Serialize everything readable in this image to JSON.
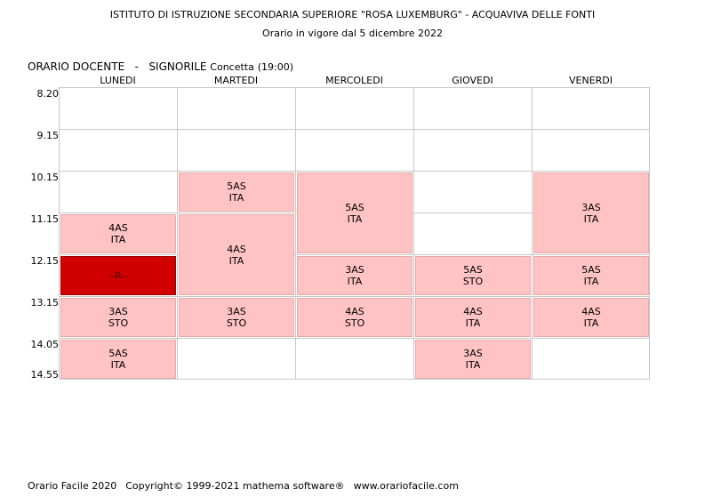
{
  "header": {
    "institute": "ISTITUTO DI ISTRUZIONE SECONDARIA SUPERIORE \"ROSA LUXEMBURG\" - ACQUAVIVA DELLE FONTI",
    "validity": "Orario in vigore dal 5 dicembre 2022"
  },
  "teacher": {
    "label": "ORARIO DOCENTE",
    "separator": "-",
    "surname": "SIGNORILE",
    "given_name": "Concetta",
    "hours": "(19:00)"
  },
  "days": [
    "LUNEDI",
    "MARTEDI",
    "MERCOLEDI",
    "GIOVEDI",
    "VENERDI"
  ],
  "times": [
    "8.20",
    "9.15",
    "10.15",
    "11.15",
    "12.15",
    "13.15",
    "14.05",
    "14.55"
  ],
  "lessons": [
    {
      "day": 0,
      "start": 3,
      "end": 4,
      "line1": "4AS",
      "line2": "ITA",
      "color": "#ffc3c3"
    },
    {
      "day": 0,
      "start": 4,
      "end": 5,
      "line1": "--R--",
      "line2": "",
      "color": "#d10000",
      "absent": true
    },
    {
      "day": 0,
      "start": 5,
      "end": 6,
      "line1": "3AS",
      "line2": "STO",
      "color": "#ffc3c3"
    },
    {
      "day": 0,
      "start": 6,
      "end": 7,
      "line1": "5AS",
      "line2": "ITA",
      "color": "#ffc3c3"
    },
    {
      "day": 1,
      "start": 2,
      "end": 3,
      "line1": "5AS",
      "line2": "ITA",
      "color": "#ffc3c3"
    },
    {
      "day": 1,
      "start": 3,
      "end": 5,
      "line1": "4AS",
      "line2": "ITA",
      "color": "#ffc3c3"
    },
    {
      "day": 1,
      "start": 5,
      "end": 6,
      "line1": "3AS",
      "line2": "STO",
      "color": "#ffc3c3"
    },
    {
      "day": 2,
      "start": 2,
      "end": 4,
      "line1": "5AS",
      "line2": "ITA",
      "color": "#ffc3c3"
    },
    {
      "day": 2,
      "start": 4,
      "end": 5,
      "line1": "3AS",
      "line2": "ITA",
      "color": "#ffc3c3"
    },
    {
      "day": 2,
      "start": 5,
      "end": 6,
      "line1": "4AS",
      "line2": "STO",
      "color": "#ffc3c3"
    },
    {
      "day": 3,
      "start": 4,
      "end": 5,
      "line1": "5AS",
      "line2": "STO",
      "color": "#ffc3c3"
    },
    {
      "day": 3,
      "start": 5,
      "end": 6,
      "line1": "4AS",
      "line2": "ITA",
      "color": "#ffc3c3"
    },
    {
      "day": 3,
      "start": 6,
      "end": 7,
      "line1": "3AS",
      "line2": "ITA",
      "color": "#ffc3c3"
    },
    {
      "day": 4,
      "start": 2,
      "end": 4,
      "line1": "3AS",
      "line2": "ITA",
      "color": "#ffc3c3"
    },
    {
      "day": 4,
      "start": 4,
      "end": 5,
      "line1": "5AS",
      "line2": "ITA",
      "color": "#ffc3c3"
    },
    {
      "day": 4,
      "start": 5,
      "end": 6,
      "line1": "4AS",
      "line2": "ITA",
      "color": "#ffc3c3"
    }
  ],
  "footer": {
    "product": "Orario Facile 2020",
    "copyright": "Copyright© 1999-2021 mathema software®",
    "website": "www.orariofacile.com"
  }
}
